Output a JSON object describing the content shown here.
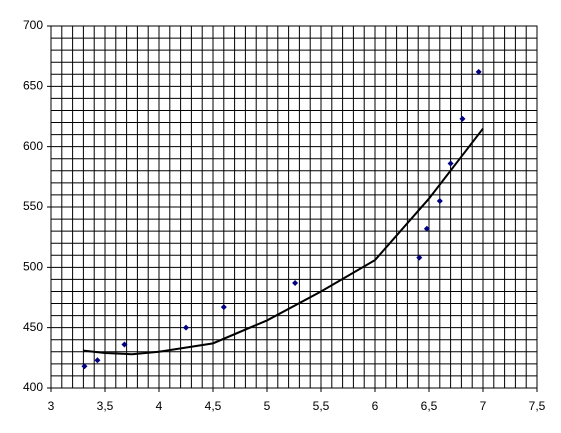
{
  "chart_data": {
    "type": "scatter",
    "x": [
      3.31,
      3.43,
      3.68,
      4.25,
      4.6,
      5.26,
      6.41,
      6.48,
      6.6,
      6.7,
      6.81,
      6.96
    ],
    "values": [
      418,
      423,
      436,
      450,
      467,
      487,
      508,
      532,
      555,
      586,
      623,
      662
    ],
    "color": "#000080",
    "trendline": {
      "x": [
        3.3,
        3.5,
        3.75,
        4,
        4.5,
        5,
        5.5,
        6,
        6.5,
        7
      ],
      "values": [
        431,
        429,
        428,
        430,
        437,
        456,
        480,
        506,
        557,
        615
      ],
      "color": "#000000"
    },
    "xlim": [
      3,
      7.5
    ],
    "ylim": [
      400,
      700
    ],
    "xticks": [
      3,
      {
        "value": 3.5,
        "label": "3,5"
      },
      4,
      {
        "value": 4.5,
        "label": "4,5"
      },
      5,
      {
        "value": 5.5,
        "label": "5,5"
      },
      6,
      {
        "value": 6.5,
        "label": "6,5"
      },
      7,
      {
        "value": 7.5,
        "label": "7,5"
      }
    ],
    "yticks": [
      400,
      450,
      500,
      550,
      600,
      650,
      700
    ],
    "grid": true
  }
}
